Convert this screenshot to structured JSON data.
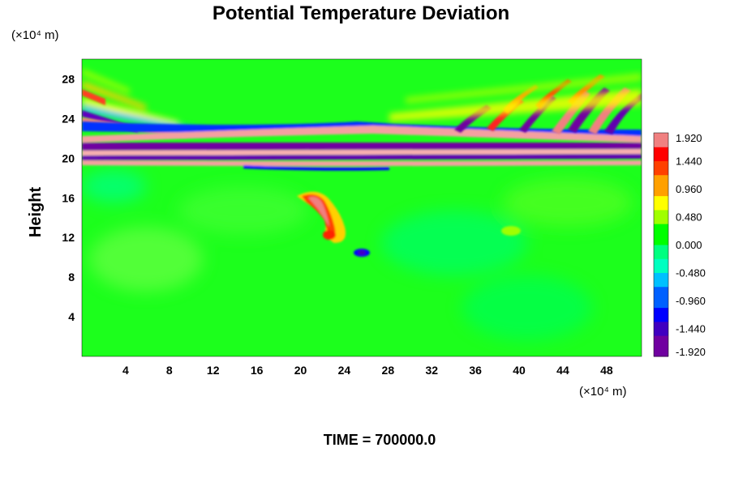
{
  "chart_data": {
    "type": "heatmap",
    "title": "Potential Temperature Deviation",
    "ylabel": "Height",
    "x_unit": "(×10⁴ m)",
    "y_unit": "(×10⁴ m)",
    "xlim": [
      0,
      51.2
    ],
    "ylim": [
      0,
      30
    ],
    "x_ticks": [
      "4",
      "8",
      "12",
      "16",
      "20",
      "24",
      "28",
      "32",
      "36",
      "40",
      "44",
      "48"
    ],
    "y_ticks": [
      "4",
      "8",
      "12",
      "16",
      "20",
      "24",
      "28"
    ],
    "colorbar": {
      "range": [
        -1.92,
        1.92
      ],
      "levels": 32,
      "labels": [
        "1.920",
        "1.440",
        "0.960",
        "0.480",
        "0.000",
        "-0.480",
        "-0.960",
        "-1.440",
        "-1.920"
      ],
      "colors": [
        "#7000a0",
        "#4000c0",
        "#0000ff",
        "#0060ff",
        "#00c0ff",
        "#00ffc0",
        "#00ff80",
        "#00ff00",
        "#a0ff00",
        "#ffff00",
        "#ffa000",
        "#ff4000",
        "#ff0000",
        "#f08080"
      ]
    },
    "features": [
      {
        "name": "upper-layer band",
        "y_range": [
          19,
          23
        ],
        "pattern": "alternating strong positive/negative"
      },
      {
        "name": "wave pattern",
        "x_range": [
          35,
          51.2
        ],
        "y_range": [
          21,
          26
        ]
      },
      {
        "name": "positive anomaly",
        "x_center": 22,
        "y_center": 14.5
      },
      {
        "name": "negative anomaly",
        "x_center": 25.5,
        "y_center": 10.5
      }
    ],
    "grid": false,
    "legend": "colorbar-right"
  },
  "time_label": "TIME = 700000.0"
}
